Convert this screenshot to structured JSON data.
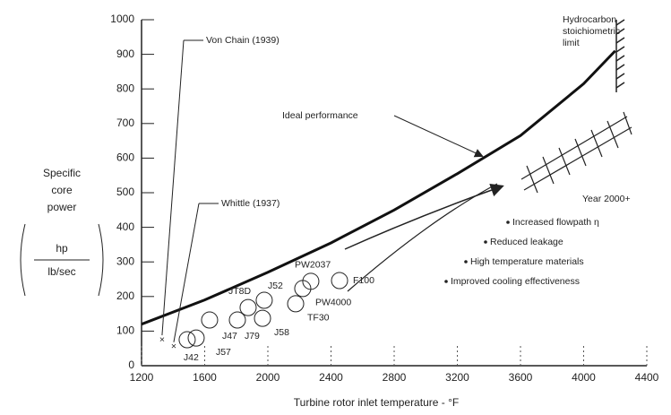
{
  "chart_data": {
    "type": "line",
    "y_label": [
      "Specific",
      "core",
      "power"
    ],
    "y_unit_top": "hp",
    "y_unit_bottom": "lb/sec",
    "x_label": "Turbine rotor inlet temperature - °F",
    "xlim": [
      1200,
      4400
    ],
    "xticks": [
      1200,
      1600,
      2000,
      2400,
      2800,
      3200,
      3600,
      4000,
      4400
    ],
    "ylim": [
      0,
      1000
    ],
    "yticks": [
      0,
      100,
      200,
      300,
      400,
      500,
      600,
      700,
      800,
      900,
      1000
    ],
    "curve": {
      "name": "Ideal performance",
      "color": "#111",
      "x": [
        1200,
        1600,
        2000,
        2400,
        2800,
        3200,
        3600,
        4000,
        4200
      ],
      "values": [
        120,
        190,
        270,
        355,
        450,
        555,
        665,
        815,
        910
      ]
    },
    "engines": [
      {
        "label": "J42",
        "x": 1489,
        "y": 75
      },
      {
        "label": "J57",
        "x": 1546,
        "y": 80
      },
      {
        "label": "J47",
        "x": 1631,
        "y": 132
      },
      {
        "label": "J79",
        "x": 1807,
        "y": 132
      },
      {
        "label": "JT8D",
        "x": 1875,
        "y": 168
      },
      {
        "label": "J52",
        "x": 1977,
        "y": 189
      },
      {
        "label": "J58",
        "x": 1966,
        "y": 137
      },
      {
        "label": "TF30",
        "x": 2176,
        "y": 179
      },
      {
        "label": "PW4000",
        "x": 2221,
        "y": 223
      },
      {
        "label": "PW2037",
        "x": 2272,
        "y": 244
      },
      {
        "label": "F100",
        "x": 2454,
        "y": 246
      }
    ],
    "historic": [
      {
        "label": "Von Chain (1939)",
        "x": 1330,
        "y": 75
      },
      {
        "label": "Whittle (1937)",
        "x": 1404,
        "y": 55
      }
    ],
    "limit_label": [
      "Hydrocarbon",
      "stoichiometric",
      "limit"
    ],
    "future_label": "Year 2000+",
    "bullets": [
      "Increased flowpath η",
      "Reduced leakage",
      "High temperature materials",
      "Improved cooling effectiveness"
    ]
  }
}
